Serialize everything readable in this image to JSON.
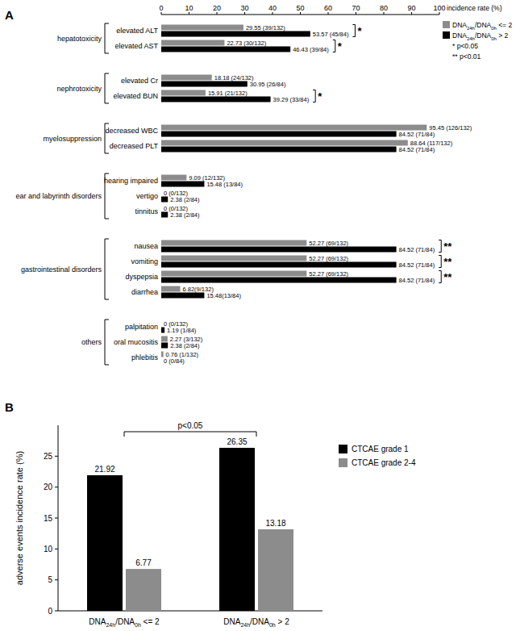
{
  "chart_data": [
    {
      "type": "bar",
      "orientation": "horizontal",
      "panel_label": "A",
      "x_label": "incidence rate (%)",
      "xlim": [
        0,
        100
      ],
      "xticks": [
        0,
        10,
        20,
        30,
        40,
        50,
        60,
        70,
        80,
        90,
        100
      ],
      "categories": [
        "elevated ALT",
        "elevated AST",
        "elevated Cr",
        "elevated BUN",
        "decreased WBC",
        "decreased PLT",
        "hearing impaired",
        "vertigo",
        "tinnitus",
        "nausea",
        "vomiting",
        "dyspepsia",
        "diarrhea",
        "palpitation",
        "oral mucositis",
        "phlebitis"
      ],
      "groups": [
        {
          "label": "hepatotoxicity",
          "size": 2
        },
        {
          "label": "nephrotoxicity",
          "size": 2
        },
        {
          "label": "myelosuppression",
          "size": 2
        },
        {
          "label": "ear and labyrinth disorders",
          "size": 3
        },
        {
          "label": "gastrointestinal disorders",
          "size": 4
        },
        {
          "label": "others",
          "size": 3
        }
      ],
      "significance": [
        "*",
        "*",
        null,
        "*",
        null,
        null,
        null,
        null,
        null,
        "**",
        "**",
        "**",
        null,
        null,
        null,
        null
      ],
      "significance_legend": [
        "* p<0.05",
        "** p<0.01"
      ],
      "data_labels": true,
      "legend": "top right",
      "series": [
        {
          "name": "DNA24h/DNA0h <= 2",
          "color": "#8c8c8c",
          "values": [
            29.55,
            22.73,
            18.18,
            15.91,
            95.45,
            88.64,
            9.09,
            0,
            0,
            52.27,
            52.27,
            52.27,
            6.82,
            0,
            2.27,
            0.76
          ],
          "value_labels": [
            "29.55 (39/132)",
            "22.73 (30/132)",
            "18.18 (24/132)",
            "15.91 (21/132)",
            "95.45 (126/132)",
            "88.64 (117/132)",
            "9.09 (12/132)",
            "0 (0/132)",
            "0 (0/132)",
            "52.27 (69/132)",
            "52.27 (69/132)",
            "52.27 (69/132)",
            "6.82(9/132)",
            "0 (0/132)",
            "2.27 (3/132)",
            "0.76 (1/132)"
          ]
        },
        {
          "name": "DNA24h/DNA0h > 2",
          "color": "#000000",
          "values": [
            53.57,
            46.43,
            30.95,
            39.29,
            84.52,
            84.52,
            15.48,
            2.38,
            2.38,
            84.52,
            84.52,
            84.52,
            15.48,
            1.19,
            2.38,
            0
          ],
          "value_labels": [
            "53.57 (45/84)",
            "46.43 (39/84)",
            "30.95 (26/84)",
            "39.29 (33/84)",
            "84.52 (71/84)",
            "84.52 (71/84)",
            "15.48 (13/84)",
            "2.38 (2/84)",
            "2.38 (2/84)",
            "84.52 (71/84)",
            "84.52 (71/84)",
            "84.52 (71/84)",
            "15.48(13/84)",
            "1.19 (1/84)",
            "2.38 (2/84)",
            "0 (0/84)"
          ]
        }
      ]
    },
    {
      "type": "bar",
      "panel_label": "B",
      "y_label": "adverse events incidence rate (%)",
      "ylim": [
        0,
        30
      ],
      "yticks": [
        0,
        5,
        10,
        15,
        20,
        25
      ],
      "categories": [
        "DNA24h/DNA0h <= 2",
        "DNA24h/DNA0h > 2"
      ],
      "annotation": "p<0.05",
      "data_labels": true,
      "legend": "right",
      "series": [
        {
          "name": "CTCAE grade 1",
          "color": "#000000",
          "values": [
            21.92,
            26.35
          ]
        },
        {
          "name": "CTCAE grade 2-4",
          "color": "#8c8c8c",
          "values": [
            6.77,
            13.18
          ]
        }
      ]
    }
  ]
}
